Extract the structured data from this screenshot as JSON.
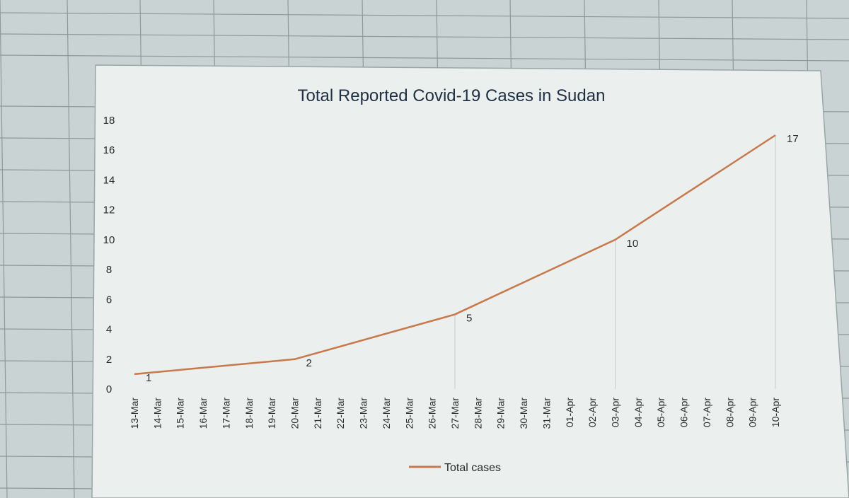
{
  "colors": {
    "line": "#c8784a",
    "text": "#2b2b2b",
    "title": "#1f2f44",
    "sheet_grid": "#8c9a9a",
    "plot_bg": "#ebefed"
  },
  "chart_data": {
    "type": "line",
    "title": "Total Reported Covid-19 Cases in Sudan",
    "xlabel": "",
    "ylabel": "",
    "ylim": [
      0,
      18
    ],
    "y_ticks": [
      "0",
      "2",
      "4",
      "6",
      "8",
      "10",
      "12",
      "14",
      "16",
      "18"
    ],
    "categories": [
      "13-Mar",
      "14-Mar",
      "15-Mar",
      "16-Mar",
      "17-Mar",
      "18-Mar",
      "19-Mar",
      "20-Mar",
      "21-Mar",
      "22-Mar",
      "23-Mar",
      "24-Mar",
      "25-Mar",
      "26-Mar",
      "27-Mar",
      "28-Mar",
      "29-Mar",
      "30-Mar",
      "31-Mar",
      "01-Apr",
      "02-Apr",
      "03-Apr",
      "04-Apr",
      "05-Apr",
      "06-Apr",
      "07-Apr",
      "08-Apr",
      "09-Apr",
      "10-Apr"
    ],
    "series": [
      {
        "name": "Total cases",
        "points": [
          {
            "x": "13-Mar",
            "y": 1
          },
          {
            "x": "20-Mar",
            "y": 2
          },
          {
            "x": "27-Mar",
            "y": 5
          },
          {
            "x": "03-Apr",
            "y": 10
          },
          {
            "x": "10-Apr",
            "y": 17
          }
        ]
      }
    ],
    "data_labels": [
      {
        "x": "13-Mar",
        "text": "1"
      },
      {
        "x": "20-Mar",
        "text": "2"
      },
      {
        "x": "27-Mar",
        "text": "5"
      },
      {
        "x": "03-Apr",
        "text": "10"
      },
      {
        "x": "10-Apr",
        "text": "17"
      }
    ],
    "grid": false,
    "legend": "bottom"
  }
}
